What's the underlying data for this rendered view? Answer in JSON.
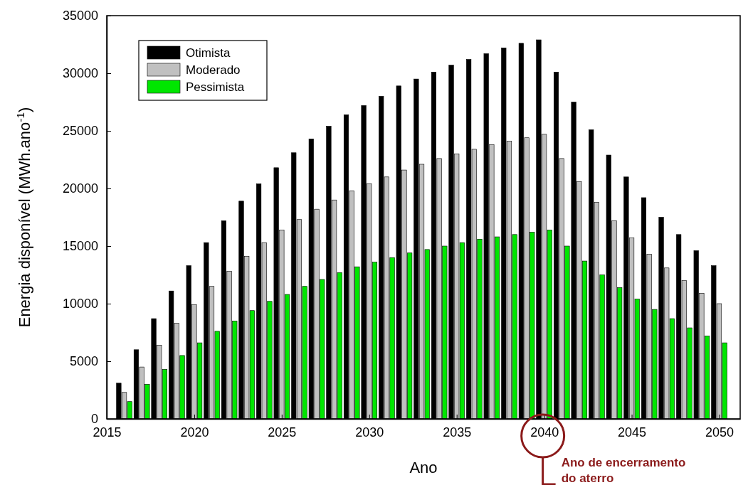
{
  "chart_data": {
    "type": "bar",
    "xlabel": "Ano",
    "ylabel": "Energia disponível (MWh.ano$^{-1}$)",
    "x": [
      2016,
      2017,
      2018,
      2019,
      2020,
      2021,
      2022,
      2023,
      2024,
      2025,
      2026,
      2027,
      2028,
      2029,
      2030,
      2031,
      2032,
      2033,
      2034,
      2035,
      2036,
      2037,
      2038,
      2039,
      2040,
      2041,
      2042,
      2043,
      2044,
      2045,
      2046,
      2047,
      2048,
      2049,
      2050
    ],
    "series": [
      {
        "name": "Otimista",
        "color": "#000000",
        "values": [
          3100,
          6000,
          8700,
          11100,
          13300,
          15300,
          17200,
          18900,
          20400,
          21800,
          23100,
          24300,
          25400,
          26400,
          27200,
          28000,
          28900,
          29500,
          30100,
          30700,
          31200,
          31700,
          32200,
          32600,
          32900,
          30100,
          27500,
          25100,
          22900,
          21000,
          19200,
          17500,
          16000,
          14600,
          13300
        ]
      },
      {
        "name": "Moderado",
        "color": "#c0c0c0",
        "values": [
          2300,
          4500,
          6400,
          8300,
          9900,
          11500,
          12800,
          14100,
          15300,
          16400,
          17300,
          18200,
          19000,
          19800,
          20400,
          21000,
          21600,
          22100,
          22600,
          23000,
          23400,
          23800,
          24100,
          24400,
          24700,
          22600,
          20600,
          18800,
          17200,
          15700,
          14300,
          13100,
          12000,
          10900,
          10000
        ]
      },
      {
        "name": "Pessimista",
        "color": "#00e600",
        "values": [
          1500,
          3000,
          4300,
          5500,
          6600,
          7600,
          8500,
          9400,
          10200,
          10800,
          11500,
          12100,
          12700,
          13200,
          13600,
          14000,
          14400,
          14700,
          15000,
          15300,
          15600,
          15800,
          16000,
          16200,
          16400,
          15000,
          13700,
          12500,
          11400,
          10400,
          9500,
          8700,
          7900,
          7200,
          6600
        ]
      }
    ],
    "xlim": [
      2015,
      2051.2
    ],
    "xticks": [
      2015,
      2020,
      2025,
      2030,
      2035,
      2040,
      2045,
      2050
    ],
    "ylim": [
      0,
      35000
    ],
    "yticks": [
      0,
      5000,
      10000,
      15000,
      20000,
      25000,
      30000,
      35000
    ],
    "grid": false,
    "legend": "top left",
    "annotations": [
      "Ano de encerramento do aterro"
    ]
  }
}
